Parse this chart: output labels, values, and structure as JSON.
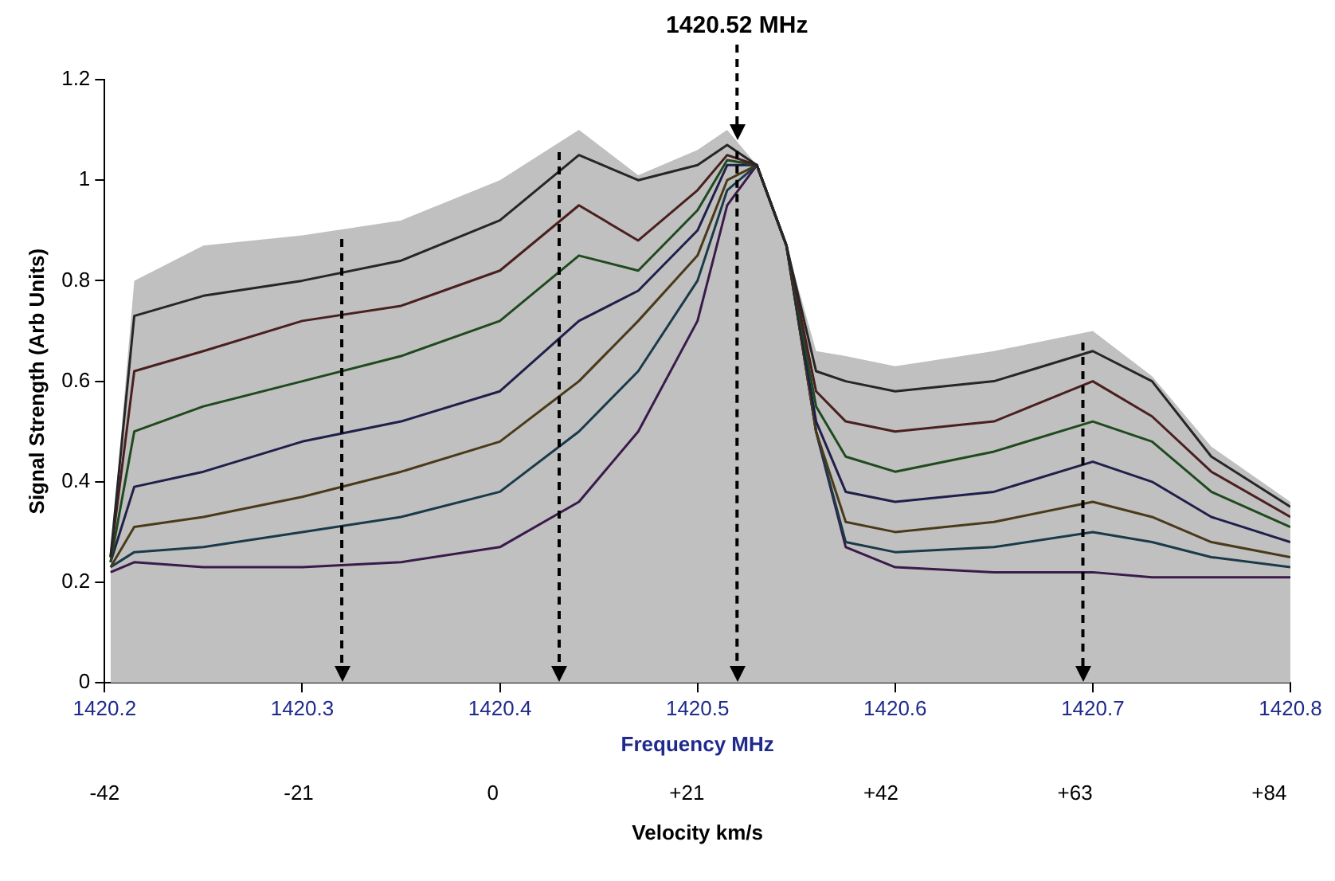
{
  "chart_data": {
    "type": "line",
    "xlabel": "Frequency MHz",
    "ylabel": "Signal Strength (Arb Units)",
    "x2label": "Velocity km/s",
    "x": [
      1420.203,
      1420.215,
      1420.25,
      1420.3,
      1420.35,
      1420.4,
      1420.44,
      1420.47,
      1420.5,
      1420.515,
      1420.53,
      1420.545,
      1420.56,
      1420.575,
      1420.6,
      1420.65,
      1420.7,
      1420.73,
      1420.76,
      1420.8
    ],
    "series": [
      {
        "type": "area",
        "color": "#c0c0c0",
        "values": [
          0.25,
          0.8,
          0.87,
          0.89,
          0.92,
          1.0,
          1.1,
          1.01,
          1.06,
          1.1,
          1.03,
          0.87,
          0.66,
          0.65,
          0.63,
          0.66,
          0.7,
          0.61,
          0.47,
          0.36
        ]
      },
      {
        "color": "#262626",
        "values": [
          0.25,
          0.73,
          0.77,
          0.8,
          0.84,
          0.92,
          1.05,
          1.0,
          1.03,
          1.07,
          1.03,
          0.87,
          0.62,
          0.6,
          0.58,
          0.6,
          0.66,
          0.6,
          0.45,
          0.35
        ]
      },
      {
        "color": "#4a1f1f",
        "values": [
          0.25,
          0.62,
          0.66,
          0.72,
          0.75,
          0.82,
          0.95,
          0.88,
          0.98,
          1.05,
          1.03,
          0.87,
          0.58,
          0.52,
          0.5,
          0.52,
          0.6,
          0.53,
          0.42,
          0.33
        ]
      },
      {
        "color": "#1f4a1f",
        "values": [
          0.24,
          0.5,
          0.55,
          0.6,
          0.65,
          0.72,
          0.85,
          0.82,
          0.94,
          1.04,
          1.03,
          0.87,
          0.55,
          0.45,
          0.42,
          0.46,
          0.52,
          0.48,
          0.38,
          0.31
        ]
      },
      {
        "color": "#1f1f4a",
        "values": [
          0.24,
          0.39,
          0.42,
          0.48,
          0.52,
          0.58,
          0.72,
          0.78,
          0.9,
          1.03,
          1.03,
          0.87,
          0.52,
          0.38,
          0.36,
          0.38,
          0.44,
          0.4,
          0.33,
          0.28
        ]
      },
      {
        "color": "#4a3a1a",
        "values": [
          0.23,
          0.31,
          0.33,
          0.37,
          0.42,
          0.48,
          0.6,
          0.72,
          0.85,
          1.0,
          1.03,
          0.87,
          0.5,
          0.32,
          0.3,
          0.32,
          0.36,
          0.33,
          0.28,
          0.25
        ]
      },
      {
        "color": "#1a3a4a",
        "values": [
          0.23,
          0.26,
          0.27,
          0.3,
          0.33,
          0.38,
          0.5,
          0.62,
          0.8,
          0.98,
          1.03,
          0.87,
          0.5,
          0.28,
          0.26,
          0.27,
          0.3,
          0.28,
          0.25,
          0.23
        ]
      },
      {
        "color": "#3a1a4a",
        "values": [
          0.22,
          0.24,
          0.23,
          0.23,
          0.24,
          0.27,
          0.36,
          0.5,
          0.72,
          0.95,
          1.03,
          0.87,
          0.5,
          0.27,
          0.23,
          0.22,
          0.22,
          0.21,
          0.21,
          0.21
        ]
      }
    ],
    "xlim": [
      1420.2,
      1420.8
    ],
    "xticks": [
      1420.2,
      1420.3,
      1420.4,
      1420.5,
      1420.6,
      1420.7,
      1420.8
    ],
    "ylim": [
      0,
      1.2
    ],
    "yticks": [
      0,
      0.2,
      0.4,
      0.6,
      0.8,
      1,
      1.2
    ],
    "x2lim": [
      -42,
      86.3
    ],
    "x2ticks": [
      -42,
      -21,
      0,
      {
        "value": 21,
        "label": "+21"
      },
      {
        "value": 42,
        "label": "+42"
      },
      {
        "value": 63,
        "label": "+63"
      },
      {
        "value": 84,
        "label": "+84"
      }
    ],
    "ref_lines": [
      {
        "axis": "x",
        "value": 1420.32,
        "color": "#000000",
        "line_style": "dashed"
      },
      {
        "axis": "x",
        "value": 1420.43,
        "color": "#000000",
        "line_style": "dashed"
      },
      {
        "axis": "x",
        "value": 1420.52,
        "label": "1420.52 MHz",
        "color": "#000000",
        "line_style": "dashed"
      },
      {
        "axis": "x",
        "value": 1420.695,
        "color": "#000000",
        "line_style": "dashed"
      }
    ],
    "grid": false,
    "legend": false,
    "marker": "none"
  }
}
